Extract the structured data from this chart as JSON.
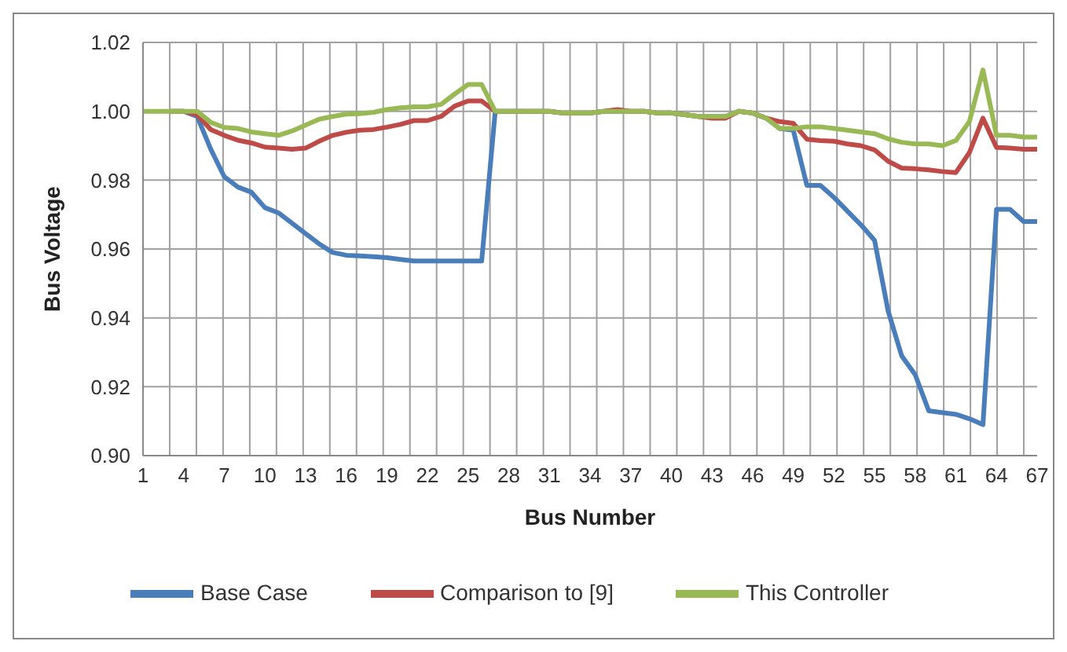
{
  "chart_data": {
    "type": "line",
    "xlabel": "Bus Number",
    "ylabel": "Bus Voltage",
    "categories": [
      "1",
      null,
      null,
      "4",
      null,
      null,
      "7",
      null,
      null,
      "10",
      null,
      null,
      "13",
      null,
      null,
      "16",
      null,
      null,
      "19",
      null,
      null,
      "22",
      null,
      null,
      "25",
      null,
      null,
      "28",
      null,
      null,
      "31",
      null,
      null,
      "34",
      null,
      null,
      "37",
      null,
      null,
      "40",
      null,
      null,
      "43",
      null,
      null,
      "46",
      null,
      null,
      "49",
      null,
      null,
      "52",
      null,
      null,
      "55",
      null,
      null,
      "58",
      null,
      null,
      "61",
      null,
      null,
      "64",
      null,
      null,
      "67"
    ],
    "series": [
      {
        "name": "Base Case",
        "color": "#4a7ebb",
        "values": [
          null,
          null,
          1.0,
          1.0,
          0.9985,
          0.989,
          0.981,
          0.978,
          0.9765,
          0.972,
          0.9705,
          0.9675,
          0.9645,
          0.9615,
          0.959,
          0.9582,
          0.958,
          0.9578,
          0.9575,
          0.957,
          0.9565,
          0.9565,
          0.9565,
          0.9565,
          0.9565,
          0.9565,
          1.0,
          1.0,
          1.0,
          1.0,
          1.0,
          0.9995,
          0.9995,
          0.9995,
          1.0,
          1.0,
          1.0,
          1.0,
          0.9995,
          0.9995,
          0.999,
          0.9985,
          0.9985,
          0.9985,
          1.0,
          0.9995,
          0.998,
          0.995,
          0.9945,
          0.9785,
          0.9785,
          0.975,
          0.971,
          0.967,
          0.9625,
          0.942,
          0.929,
          0.9235,
          0.913,
          0.9125,
          0.912,
          0.9107,
          0.909,
          0.9715,
          0.9715,
          0.968,
          0.968
        ]
      },
      {
        "name": "Comparison to [9]",
        "color": "#be4b48",
        "values": [
          null,
          null,
          1.0,
          1.0,
          0.999,
          0.9947,
          0.993,
          0.9916,
          0.9908,
          0.9896,
          0.9893,
          0.989,
          0.9893,
          0.9913,
          0.993,
          0.9939,
          0.9945,
          0.9947,
          0.9954,
          0.9962,
          0.9973,
          0.9973,
          0.9985,
          1.0015,
          1.003,
          1.003,
          1.0,
          1.0,
          1.0,
          1.0,
          1.0,
          0.9995,
          0.9995,
          0.9995,
          1.0,
          1.0005,
          1.0,
          1.0,
          0.9995,
          0.9995,
          0.999,
          0.9985,
          0.998,
          0.998,
          1.0,
          0.9995,
          0.998,
          0.997,
          0.9965,
          0.9919,
          0.9915,
          0.9913,
          0.9905,
          0.99,
          0.9888,
          0.9855,
          0.9835,
          0.9833,
          0.983,
          0.9825,
          0.9822,
          0.988,
          0.998,
          0.9895,
          0.9893,
          0.989,
          0.989
        ]
      },
      {
        "name": "This Controller",
        "color": "#98b954",
        "values": [
          1.0,
          1.0,
          1.0,
          1.0,
          1.0,
          0.9968,
          0.9953,
          0.995,
          0.994,
          0.9935,
          0.993,
          0.9943,
          0.996,
          0.9977,
          0.9985,
          0.9992,
          0.9993,
          0.9997,
          1.0005,
          1.001,
          1.0013,
          1.0013,
          1.002,
          1.005,
          1.0078,
          1.0078,
          1.0,
          1.0,
          1.0,
          1.0,
          1.0,
          0.9995,
          0.9995,
          0.9995,
          1.0,
          1.0,
          1.0,
          1.0,
          0.9995,
          0.9995,
          0.999,
          0.9985,
          0.9985,
          0.9985,
          1.0,
          0.9995,
          0.998,
          0.995,
          0.995,
          0.9955,
          0.9955,
          0.995,
          0.9945,
          0.994,
          0.9935,
          0.992,
          0.991,
          0.9905,
          0.9905,
          0.99,
          0.9915,
          0.997,
          1.012,
          0.993,
          0.993,
          0.9925,
          0.9925
        ]
      }
    ],
    "ylim": [
      0.9,
      1.02
    ],
    "yticks": [
      {
        "value": 0.9,
        "label": "0.90"
      },
      {
        "value": 0.92,
        "label": "0.92"
      },
      {
        "value": 0.94,
        "label": "0.94"
      },
      {
        "value": 0.96,
        "label": "0.96"
      },
      {
        "value": 0.98,
        "label": "0.98"
      },
      {
        "value": 1.0,
        "label": "1.00"
      },
      {
        "value": 1.02,
        "label": "1.02"
      }
    ],
    "grid": true,
    "legend": "bottom",
    "marker": "none",
    "line_style": "solid"
  }
}
